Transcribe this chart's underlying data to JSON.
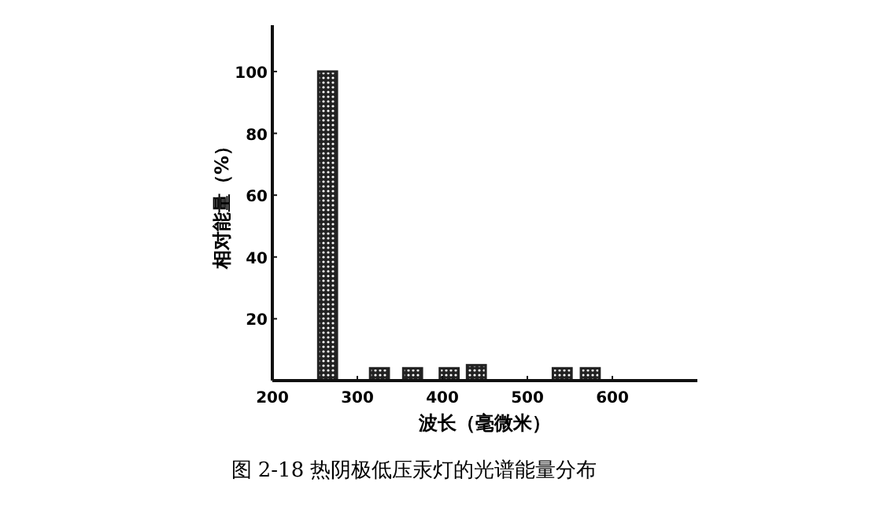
{
  "chart_data": {
    "type": "bar",
    "title": "图 2-18  热阴极低压汞灯的光谱能量分布",
    "xlabel": "波长（毫微米）",
    "ylabel": "相对能量（%）",
    "x": [
      265,
      326,
      365,
      408,
      440,
      541,
      574
    ],
    "values": [
      100,
      4,
      4,
      4,
      5,
      4,
      4
    ],
    "color": "#222222",
    "xlim": [
      200,
      700
    ],
    "xticks": [
      200,
      300,
      400,
      500,
      600
    ],
    "ylim": [
      0,
      115
    ],
    "yticks": [
      20,
      40,
      60,
      80,
      100
    ],
    "grid": false
  }
}
